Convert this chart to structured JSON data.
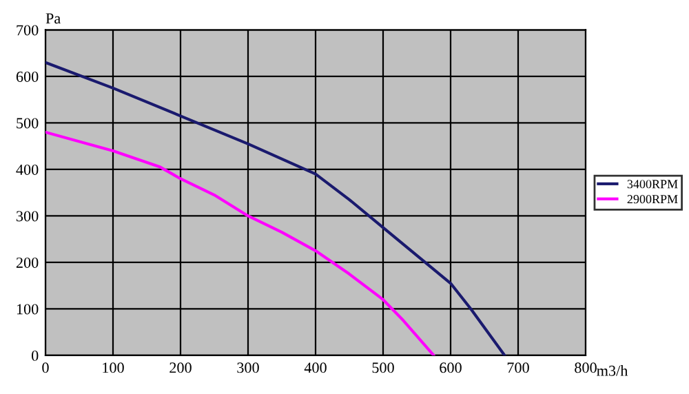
{
  "chart_data": {
    "type": "line",
    "xlabel": "m3/h",
    "ylabel": "Pa",
    "xlim": [
      0,
      800
    ],
    "ylim": [
      0,
      700
    ],
    "xticks": [
      0,
      100,
      200,
      300,
      400,
      500,
      600,
      700,
      800
    ],
    "yticks": [
      0,
      100,
      200,
      300,
      400,
      500,
      600,
      700
    ],
    "grid": true,
    "legend": "right",
    "marker": "none",
    "line_style": "solid",
    "series": [
      {
        "name": "3400RPM",
        "color": "#1a1a6e",
        "x": [
          0,
          100,
          200,
          300,
          400,
          450,
          500,
          550,
          600,
          630,
          680
        ],
        "values": [
          630,
          575,
          515,
          455,
          390,
          335,
          275,
          215,
          155,
          100,
          0
        ]
      },
      {
        "name": "2900RPM",
        "color": "#ff00ff",
        "x": [
          0,
          100,
          170,
          200,
          250,
          300,
          350,
          400,
          450,
          500,
          530,
          575
        ],
        "values": [
          480,
          440,
          405,
          380,
          345,
          300,
          265,
          225,
          175,
          120,
          75,
          0
        ]
      }
    ]
  }
}
